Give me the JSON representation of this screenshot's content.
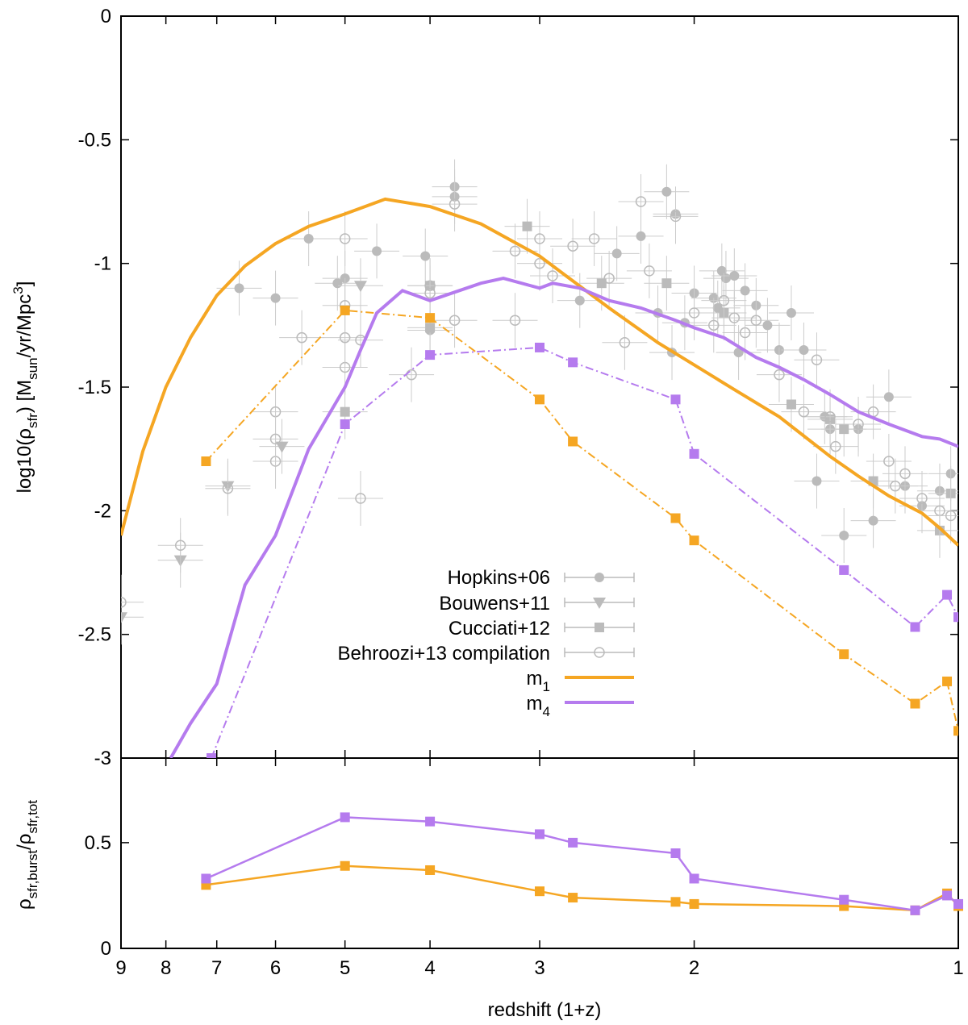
{
  "chart_data": [
    {
      "type": "line",
      "panel": "top",
      "xlabel": "",
      "ylabel": "log10(ρ_sfr) [M_sun/yr/Mpc^3]",
      "ylabel_parts": {
        "pre": "log10(ρ",
        "sub1": "sfr",
        "mid": ") [M",
        "sub2": "sun",
        "mid2": "/yr/Mpc",
        "sup": "3",
        "post": "]"
      },
      "x_scale": "log",
      "xlim": [
        1,
        9
      ],
      "ylim": [
        -3,
        0
      ],
      "yticks": [
        {
          "v": 0,
          "label": "0"
        },
        {
          "v": -0.5,
          "label": "-0.5"
        },
        {
          "v": -1,
          "label": "-1"
        },
        {
          "v": -1.5,
          "label": "-1.5"
        },
        {
          "v": -2,
          "label": "-2"
        },
        {
          "v": -2.5,
          "label": "-2.5"
        },
        {
          "v": -3,
          "label": "-3"
        }
      ],
      "legend_position": "center-right",
      "observations": [
        {
          "name": "Hopkins+06",
          "marker": "filled-circle",
          "color": "#bbbbbb",
          "points": [
            [
              6.6,
              -1.1
            ],
            [
              6.0,
              -1.14
            ],
            [
              5.5,
              -0.9
            ],
            [
              5.1,
              -1.08
            ],
            [
              5.0,
              -1.06
            ],
            [
              4.6,
              -0.95
            ],
            [
              4.05,
              -0.97
            ],
            [
              4.0,
              -1.27
            ],
            [
              3.75,
              -0.69
            ],
            [
              3.75,
              -0.73
            ],
            [
              2.7,
              -1.15
            ],
            [
              2.45,
              -0.96
            ],
            [
              2.3,
              -0.89
            ],
            [
              2.2,
              -1.2
            ],
            [
              2.15,
              -0.71
            ],
            [
              2.12,
              -1.36
            ],
            [
              2.1,
              -0.8
            ],
            [
              2.05,
              -1.24
            ],
            [
              2.0,
              -1.12
            ],
            [
              1.9,
              -1.14
            ],
            [
              1.88,
              -1.18
            ],
            [
              1.86,
              -1.03
            ],
            [
              1.84,
              -1.06
            ],
            [
              1.8,
              -1.05
            ],
            [
              1.78,
              -1.36
            ],
            [
              1.75,
              -1.11
            ],
            [
              1.7,
              -1.17
            ],
            [
              1.65,
              -1.25
            ],
            [
              1.6,
              -1.35
            ],
            [
              1.55,
              -1.2
            ],
            [
              1.5,
              -1.35
            ],
            [
              1.45,
              -1.88
            ],
            [
              1.42,
              -1.62
            ],
            [
              1.4,
              -1.67
            ],
            [
              1.35,
              -2.1
            ],
            [
              1.3,
              -1.67
            ],
            [
              1.25,
              -2.04
            ],
            [
              1.2,
              -1.54
            ],
            [
              1.15,
              -1.9
            ],
            [
              1.1,
              -1.98
            ],
            [
              1.05,
              -1.92
            ],
            [
              1.02,
              -1.85
            ]
          ]
        },
        {
          "name": "Bouwens+11",
          "marker": "filled-triangle-down",
          "color": "#bbbbbb",
          "points": [
            [
              9.0,
              -2.43
            ],
            [
              7.7,
              -2.2
            ],
            [
              6.8,
              -1.9
            ],
            [
              5.9,
              -1.74
            ],
            [
              4.8,
              -1.09
            ]
          ]
        },
        {
          "name": "Cucciati+12",
          "marker": "filled-square",
          "color": "#bbbbbb",
          "points": [
            [
              5.0,
              -1.6
            ],
            [
              4.0,
              -1.26
            ],
            [
              4.0,
              -1.09
            ],
            [
              3.1,
              -0.85
            ],
            [
              2.55,
              -1.08
            ],
            [
              2.15,
              -1.08
            ],
            [
              1.85,
              -1.2
            ],
            [
              1.55,
              -1.57
            ],
            [
              1.4,
              -1.63
            ],
            [
              1.35,
              -1.67
            ],
            [
              1.25,
              -1.88
            ],
            [
              1.05,
              -2.08
            ],
            [
              1.02,
              -1.93
            ]
          ]
        },
        {
          "name": "Behroozi+13 compilation",
          "marker": "open-circle",
          "color": "#bbbbbb",
          "points": [
            [
              9.0,
              -2.37
            ],
            [
              7.7,
              -2.14
            ],
            [
              6.8,
              -1.91
            ],
            [
              6.0,
              -1.6
            ],
            [
              6.0,
              -1.8
            ],
            [
              6.0,
              -1.71
            ],
            [
              5.6,
              -1.3
            ],
            [
              5.0,
              -0.9
            ],
            [
              5.0,
              -1.42
            ],
            [
              5.0,
              -1.3
            ],
            [
              5.0,
              -1.17
            ],
            [
              4.8,
              -1.95
            ],
            [
              4.8,
              -1.31
            ],
            [
              4.2,
              -1.45
            ],
            [
              4.0,
              -1.09
            ],
            [
              4.0,
              -1.12
            ],
            [
              3.75,
              -0.76
            ],
            [
              3.75,
              -1.23
            ],
            [
              3.2,
              -1.23
            ],
            [
              3.2,
              -0.95
            ],
            [
              3.0,
              -1.0
            ],
            [
              3.0,
              -0.9
            ],
            [
              2.9,
              -1.05
            ],
            [
              2.75,
              -0.93
            ],
            [
              2.6,
              -0.9
            ],
            [
              2.5,
              -1.06
            ],
            [
              2.4,
              -1.32
            ],
            [
              2.3,
              -0.75
            ],
            [
              2.25,
              -1.03
            ],
            [
              2.1,
              -0.81
            ],
            [
              2.0,
              -1.2
            ],
            [
              1.9,
              -1.25
            ],
            [
              1.85,
              -1.15
            ],
            [
              1.8,
              -1.22
            ],
            [
              1.75,
              -1.28
            ],
            [
              1.7,
              -1.23
            ],
            [
              1.6,
              -1.45
            ],
            [
              1.5,
              -1.6
            ],
            [
              1.45,
              -1.39
            ],
            [
              1.4,
              -1.62
            ],
            [
              1.38,
              -1.74
            ],
            [
              1.3,
              -1.65
            ],
            [
              1.25,
              -1.6
            ],
            [
              1.2,
              -1.8
            ],
            [
              1.18,
              -1.9
            ],
            [
              1.15,
              -1.85
            ],
            [
              1.1,
              -1.95
            ],
            [
              1.05,
              -2.0
            ],
            [
              1.02,
              -2.02
            ]
          ]
        }
      ],
      "models": [
        {
          "name": "m_1",
          "label_sub": "1",
          "color": "#f5a623",
          "line": [
            [
              9.0,
              -2.1
            ],
            [
              8.5,
              -1.76
            ],
            [
              8.0,
              -1.5
            ],
            [
              7.5,
              -1.3
            ],
            [
              7.0,
              -1.13
            ],
            [
              6.5,
              -1.01
            ],
            [
              6.0,
              -0.92
            ],
            [
              5.5,
              -0.85
            ],
            [
              5.0,
              -0.8
            ],
            [
              4.5,
              -0.74
            ],
            [
              4.0,
              -0.77
            ],
            [
              3.5,
              -0.84
            ],
            [
              3.0,
              -0.97
            ],
            [
              2.8,
              -1.05
            ],
            [
              2.5,
              -1.18
            ],
            [
              2.2,
              -1.32
            ],
            [
              2.0,
              -1.41
            ],
            [
              1.8,
              -1.51
            ],
            [
              1.6,
              -1.62
            ],
            [
              1.4,
              -1.78
            ],
            [
              1.3,
              -1.86
            ],
            [
              1.2,
              -1.94
            ],
            [
              1.1,
              -2.01
            ],
            [
              1.05,
              -2.07
            ],
            [
              1.0,
              -2.14
            ]
          ],
          "bursty": [
            [
              7.2,
              -1.8
            ],
            [
              5.0,
              -1.19
            ],
            [
              4.0,
              -1.22
            ],
            [
              3.0,
              -1.55
            ],
            [
              2.75,
              -1.72
            ],
            [
              2.1,
              -2.03
            ],
            [
              2.0,
              -2.12
            ],
            [
              1.35,
              -2.58
            ],
            [
              1.12,
              -2.78
            ],
            [
              1.03,
              -2.69
            ],
            [
              1.0,
              -2.89
            ]
          ]
        },
        {
          "name": "m_4",
          "label_sub": "4",
          "color": "#b57bee",
          "line": [
            [
              7.9,
              -3.0
            ],
            [
              7.5,
              -2.86
            ],
            [
              7.0,
              -2.7
            ],
            [
              6.5,
              -2.3
            ],
            [
              6.0,
              -2.1
            ],
            [
              5.5,
              -1.75
            ],
            [
              5.0,
              -1.5
            ],
            [
              4.8,
              -1.35
            ],
            [
              4.6,
              -1.2
            ],
            [
              4.3,
              -1.11
            ],
            [
              4.0,
              -1.15
            ],
            [
              3.5,
              -1.08
            ],
            [
              3.3,
              -1.06
            ],
            [
              3.0,
              -1.1
            ],
            [
              2.9,
              -1.08
            ],
            [
              2.7,
              -1.1
            ],
            [
              2.5,
              -1.15
            ],
            [
              2.3,
              -1.18
            ],
            [
              2.1,
              -1.23
            ],
            [
              2.0,
              -1.26
            ],
            [
              1.85,
              -1.3
            ],
            [
              1.7,
              -1.38
            ],
            [
              1.6,
              -1.42
            ],
            [
              1.5,
              -1.47
            ],
            [
              1.4,
              -1.53
            ],
            [
              1.3,
              -1.6
            ],
            [
              1.2,
              -1.65
            ],
            [
              1.1,
              -1.7
            ],
            [
              1.05,
              -1.71
            ],
            [
              1.0,
              -1.74
            ]
          ],
          "bursty": [
            [
              7.1,
              -3.0
            ],
            [
              5.0,
              -1.65
            ],
            [
              4.0,
              -1.37
            ],
            [
              3.0,
              -1.34
            ],
            [
              2.75,
              -1.4
            ],
            [
              2.1,
              -1.55
            ],
            [
              2.0,
              -1.77
            ],
            [
              1.35,
              -2.24
            ],
            [
              1.12,
              -2.47
            ],
            [
              1.03,
              -2.34
            ],
            [
              1.0,
              -2.43
            ]
          ]
        }
      ]
    },
    {
      "type": "line",
      "panel": "bottom",
      "xlabel": "redshift (1+z)",
      "ylabel": "ρ_sfr,burst/ρ_sfr,tot",
      "ylabel_parts": {
        "rho1": "ρ",
        "sub1": "sfr,burst",
        "slash": "/",
        "rho2": "ρ",
        "sub2": "sfr,tot"
      },
      "x_scale": "log",
      "xlim": [
        1,
        9
      ],
      "ylim": [
        0,
        0.9
      ],
      "xticks": [
        {
          "v": 9,
          "label": "9"
        },
        {
          "v": 8,
          "label": "8"
        },
        {
          "v": 7,
          "label": "7"
        },
        {
          "v": 6,
          "label": "6"
        },
        {
          "v": 5,
          "label": "5"
        },
        {
          "v": 4,
          "label": "4"
        },
        {
          "v": 3,
          "label": "3"
        },
        {
          "v": 2,
          "label": "2"
        },
        {
          "v": 1,
          "label": "1"
        }
      ],
      "yticks": [
        {
          "v": 0,
          "label": "0"
        },
        {
          "v": 0.5,
          "label": "0.5"
        }
      ],
      "series": [
        {
          "name": "m_1",
          "color": "#f5a623",
          "points": [
            [
              7.2,
              0.3
            ],
            [
              5.0,
              0.39
            ],
            [
              4.0,
              0.37
            ],
            [
              3.0,
              0.27
            ],
            [
              2.75,
              0.24
            ],
            [
              2.1,
              0.22
            ],
            [
              2.0,
              0.21
            ],
            [
              1.35,
              0.2
            ],
            [
              1.12,
              0.18
            ],
            [
              1.03,
              0.26
            ],
            [
              1.0,
              0.2
            ]
          ]
        },
        {
          "name": "m_4",
          "color": "#b57bee",
          "points": [
            [
              7.2,
              0.33
            ],
            [
              5.0,
              0.62
            ],
            [
              4.0,
              0.6
            ],
            [
              3.0,
              0.54
            ],
            [
              2.75,
              0.5
            ],
            [
              2.1,
              0.45
            ],
            [
              2.0,
              0.33
            ],
            [
              1.35,
              0.23
            ],
            [
              1.12,
              0.18
            ],
            [
              1.03,
              0.25
            ],
            [
              1.0,
              0.21
            ]
          ]
        }
      ]
    }
  ]
}
